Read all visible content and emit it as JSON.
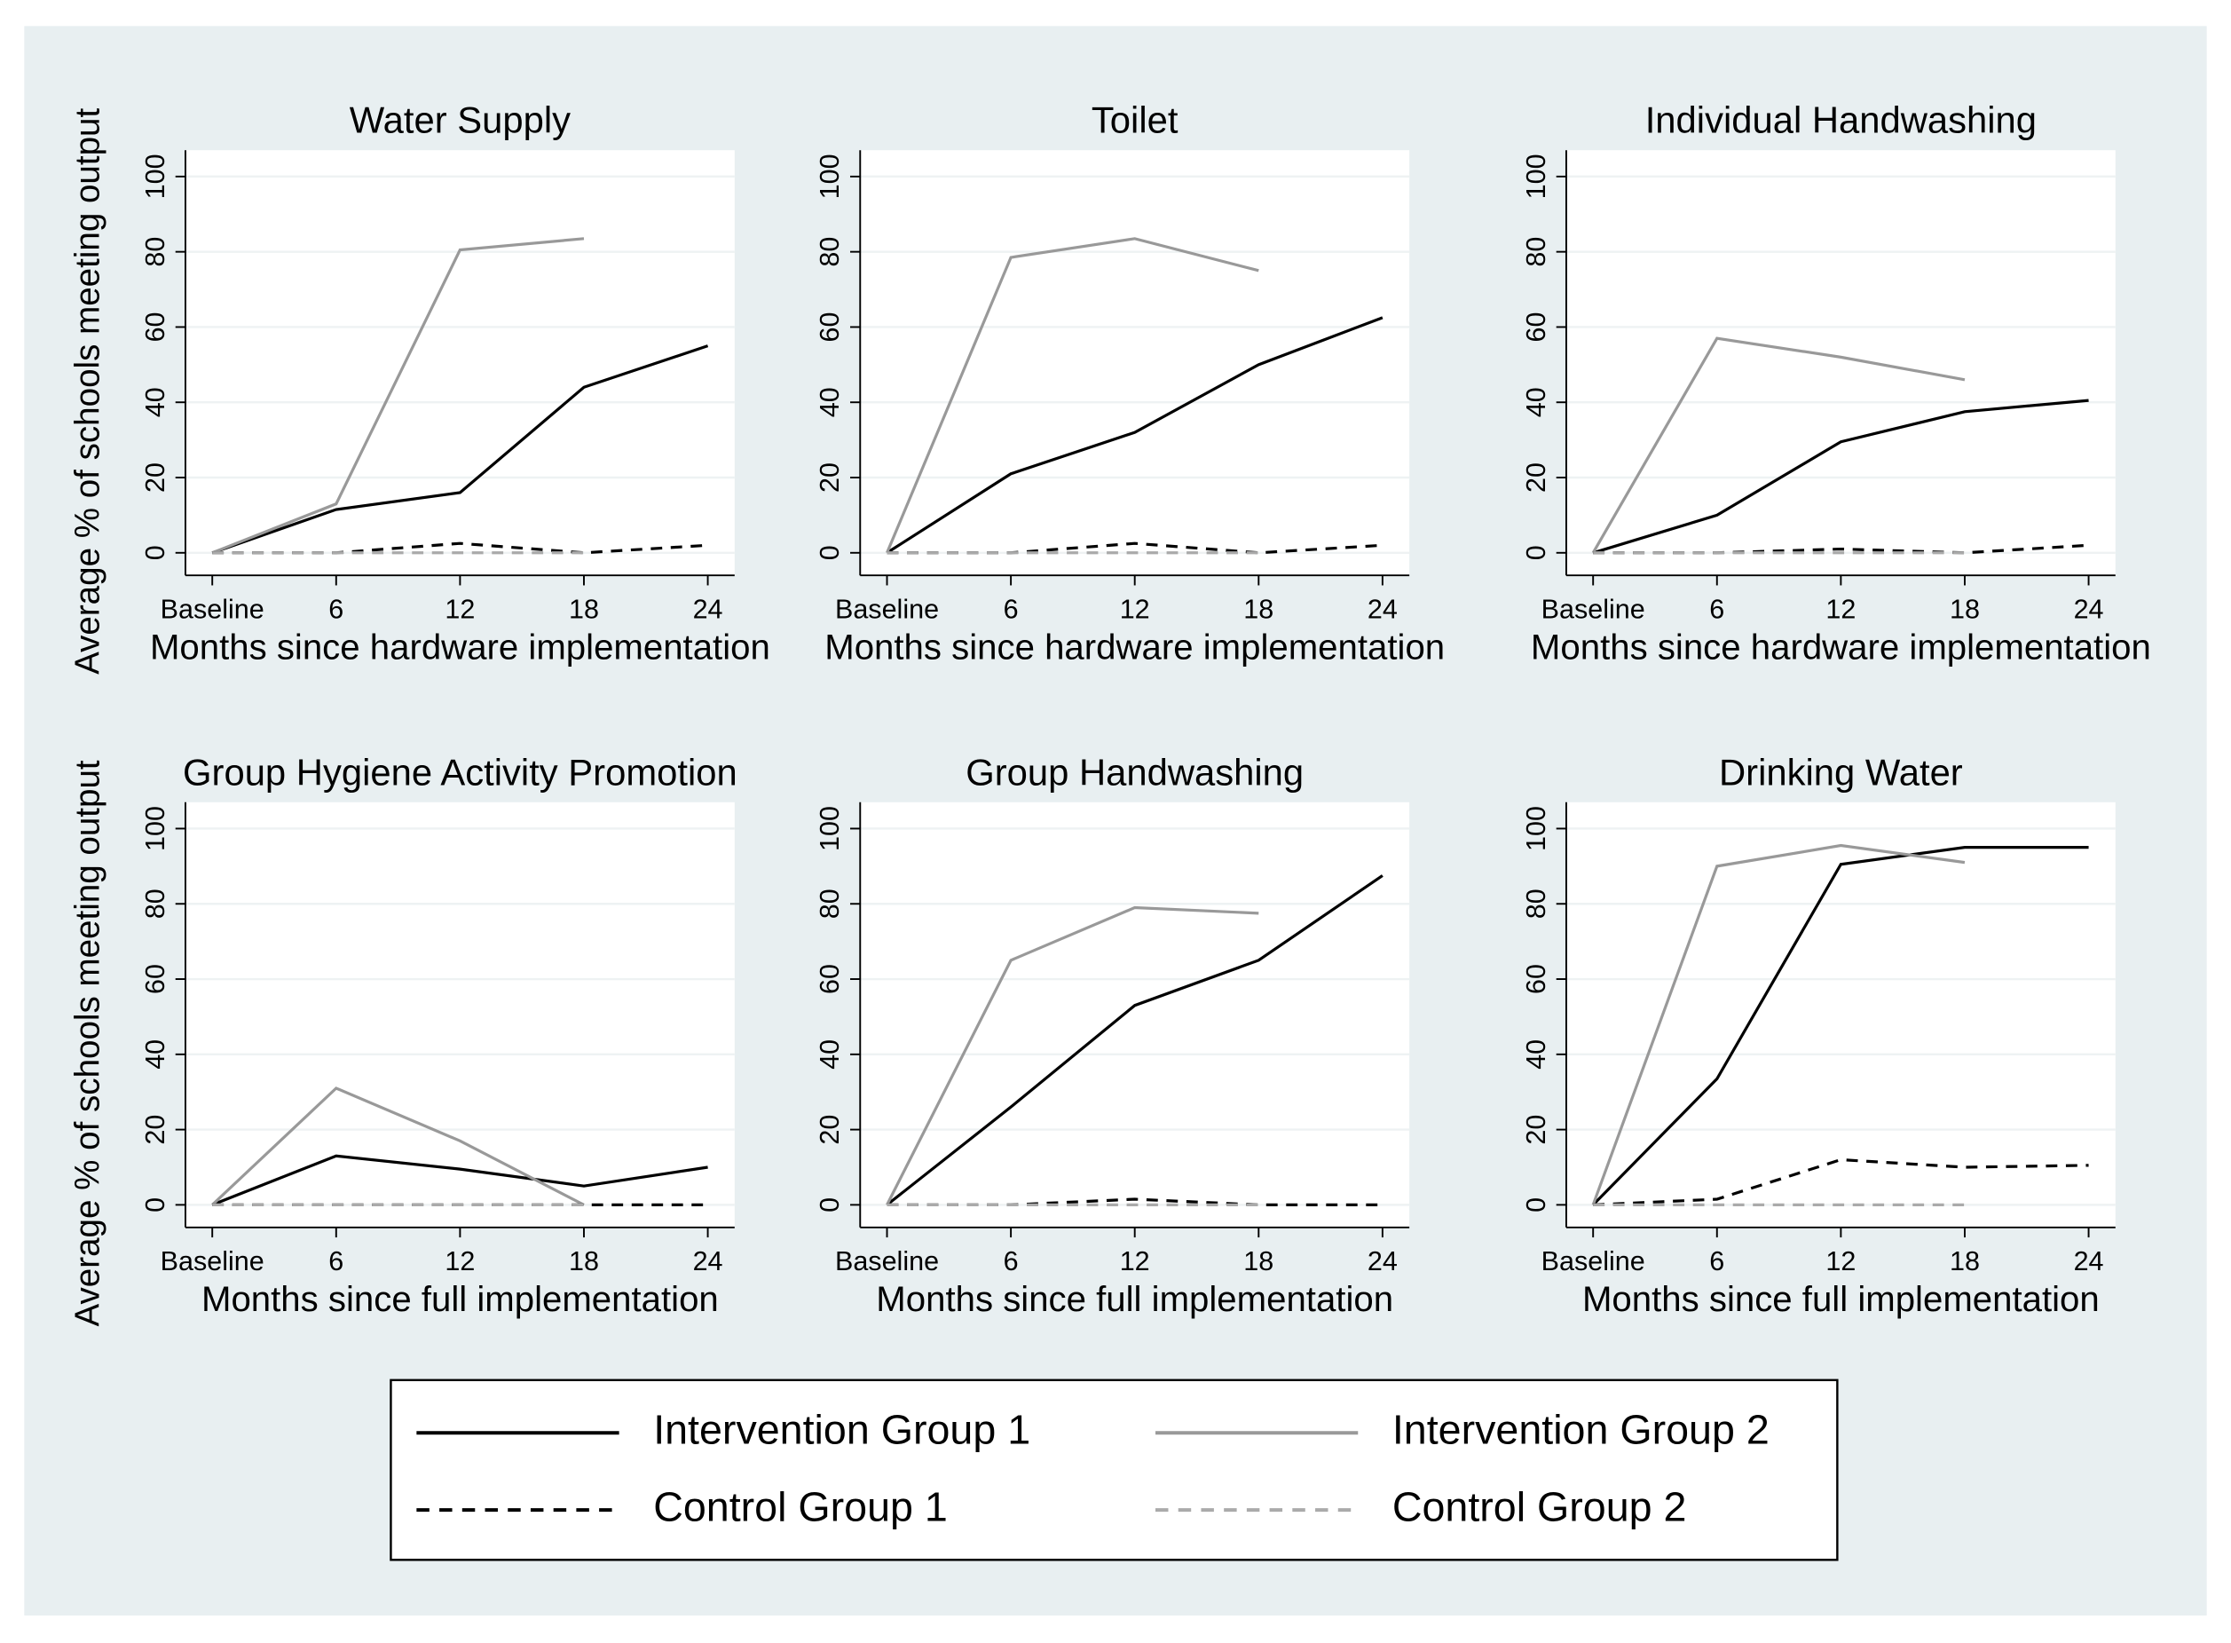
{
  "chart_data": [
    {
      "type": "line",
      "title": "Water Supply",
      "xlabel": "Months since hardware implementation",
      "ylabel": "Average % of schools meeting output",
      "x": [
        0,
        6,
        12,
        18,
        24
      ],
      "xlim": [
        -1.3,
        25.3
      ],
      "xticks": [
        {
          "value": 0,
          "label": "Baseline"
        },
        6,
        12,
        18,
        24
      ],
      "ylim": [
        -6,
        107
      ],
      "yticks": [
        0,
        20,
        40,
        60,
        80,
        100
      ],
      "grid": true,
      "legend": "bottom",
      "series": [
        {
          "name": "Intervention Group 1",
          "color": "#000000",
          "dashed": false,
          "values": [
            0,
            11.5,
            16,
            44,
            55
          ]
        },
        {
          "name": "Intervention Group 2",
          "color": "#999999",
          "dashed": false,
          "values": [
            0,
            13,
            80.5,
            83.5,
            null
          ]
        },
        {
          "name": "Control Group 1",
          "color": "#000000",
          "dashed": true,
          "values": [
            0,
            0,
            2.5,
            0,
            2
          ]
        },
        {
          "name": "Control Group 2",
          "color": "#aaaaaa",
          "dashed": true,
          "values": [
            0,
            0,
            0,
            0,
            null
          ]
        }
      ]
    },
    {
      "type": "line",
      "title": "Toilet",
      "xlabel": "Months since hardware implementation",
      "x": [
        0,
        6,
        12,
        18,
        24
      ],
      "xlim": [
        -1.3,
        25.3
      ],
      "xticks": [
        {
          "value": 0,
          "label": "Baseline"
        },
        6,
        12,
        18,
        24
      ],
      "ylim": [
        -6,
        107
      ],
      "yticks": [
        0,
        20,
        40,
        60,
        80,
        100
      ],
      "grid": true,
      "series": [
        {
          "color": "#000000",
          "dashed": false,
          "values": [
            0,
            21,
            32,
            50,
            62.5
          ]
        },
        {
          "color": "#999999",
          "dashed": false,
          "values": [
            0,
            78.5,
            83.5,
            75,
            null
          ]
        },
        {
          "color": "#000000",
          "dashed": true,
          "values": [
            0,
            0,
            2.5,
            0,
            2
          ]
        },
        {
          "color": "#aaaaaa",
          "dashed": true,
          "values": [
            0,
            0,
            0,
            0,
            null
          ]
        }
      ]
    },
    {
      "type": "line",
      "title": "Individual Handwashing",
      "xlabel": "Months since hardware implementation",
      "x": [
        0,
        6,
        12,
        18,
        24
      ],
      "xlim": [
        -1.3,
        25.3
      ],
      "xticks": [
        {
          "value": 0,
          "label": "Baseline"
        },
        6,
        12,
        18,
        24
      ],
      "ylim": [
        -6,
        107
      ],
      "yticks": [
        0,
        20,
        40,
        60,
        80,
        100
      ],
      "grid": true,
      "series": [
        {
          "color": "#000000",
          "dashed": false,
          "values": [
            0,
            10,
            29.5,
            37.5,
            40.5
          ]
        },
        {
          "color": "#999999",
          "dashed": false,
          "values": [
            0,
            57,
            52,
            46,
            null
          ]
        },
        {
          "color": "#000000",
          "dashed": true,
          "values": [
            0,
            0,
            1,
            0,
            2
          ]
        },
        {
          "color": "#aaaaaa",
          "dashed": true,
          "values": [
            0,
            0,
            0,
            0,
            null
          ]
        }
      ]
    },
    {
      "type": "line",
      "title": "Group Hygiene Activity Promotion",
      "xlabel": "Months since full implementation",
      "ylabel": "Average % of schools meeting output",
      "x": [
        0,
        6,
        12,
        18,
        24
      ],
      "xlim": [
        -1.3,
        25.3
      ],
      "xticks": [
        {
          "value": 0,
          "label": "Baseline"
        },
        6,
        12,
        18,
        24
      ],
      "ylim": [
        -6,
        107
      ],
      "yticks": [
        0,
        20,
        40,
        60,
        80,
        100
      ],
      "grid": true,
      "series": [
        {
          "color": "#000000",
          "dashed": false,
          "values": [
            0,
            13,
            9.5,
            5,
            10
          ]
        },
        {
          "color": "#999999",
          "dashed": false,
          "values": [
            0,
            31,
            17,
            0,
            null
          ]
        },
        {
          "color": "#000000",
          "dashed": true,
          "values": [
            0,
            0,
            0,
            0,
            0
          ]
        },
        {
          "color": "#aaaaaa",
          "dashed": true,
          "values": [
            0,
            0,
            0,
            0,
            null
          ]
        }
      ]
    },
    {
      "type": "line",
      "title": "Group Handwashing",
      "xlabel": "Months since full implementation",
      "x": [
        0,
        6,
        12,
        18,
        24
      ],
      "xlim": [
        -1.3,
        25.3
      ],
      "xticks": [
        {
          "value": 0,
          "label": "Baseline"
        },
        6,
        12,
        18,
        24
      ],
      "ylim": [
        -6,
        107
      ],
      "yticks": [
        0,
        20,
        40,
        60,
        80,
        100
      ],
      "grid": true,
      "series": [
        {
          "color": "#000000",
          "dashed": false,
          "values": [
            0,
            26,
            53,
            65,
            87.5
          ]
        },
        {
          "color": "#999999",
          "dashed": false,
          "values": [
            0,
            65,
            79,
            77.5,
            null
          ]
        },
        {
          "color": "#000000",
          "dashed": true,
          "values": [
            0,
            0,
            1.5,
            0,
            0
          ]
        },
        {
          "color": "#aaaaaa",
          "dashed": true,
          "values": [
            0,
            0,
            0,
            0,
            null
          ]
        }
      ]
    },
    {
      "type": "line",
      "title": "Drinking Water",
      "xlabel": "Months since full implementation",
      "x": [
        0,
        6,
        12,
        18,
        24
      ],
      "xlim": [
        -1.3,
        25.3
      ],
      "xticks": [
        {
          "value": 0,
          "label": "Baseline"
        },
        6,
        12,
        18,
        24
      ],
      "ylim": [
        -6,
        107
      ],
      "yticks": [
        0,
        20,
        40,
        60,
        80,
        100
      ],
      "grid": true,
      "series": [
        {
          "color": "#000000",
          "dashed": false,
          "values": [
            0,
            33.5,
            90.5,
            95,
            95
          ]
        },
        {
          "color": "#999999",
          "dashed": false,
          "values": [
            0,
            90,
            95.5,
            91,
            null
          ]
        },
        {
          "color": "#000000",
          "dashed": true,
          "values": [
            0,
            1.5,
            12,
            10,
            10.5
          ]
        },
        {
          "color": "#aaaaaa",
          "dashed": true,
          "values": [
            0,
            0,
            0,
            0,
            null
          ]
        }
      ]
    }
  ]
}
